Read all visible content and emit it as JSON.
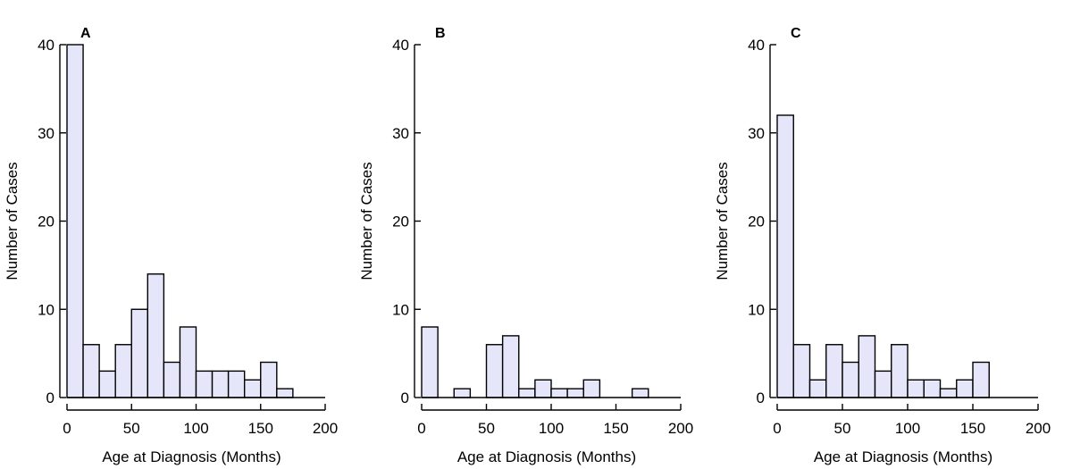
{
  "chart_data": [
    {
      "type": "bar",
      "panel": "A",
      "xlabel": "Age at Diagnosis (Months)",
      "ylabel": "Number of Cases",
      "xlim": [
        0,
        200
      ],
      "ylim": [
        0,
        40
      ],
      "xticks": [
        0,
        50,
        100,
        150,
        200
      ],
      "yticks": [
        0,
        10,
        20,
        30,
        40
      ],
      "bin_width": 12.5,
      "bin_starts": [
        0,
        12.5,
        25,
        37.5,
        50,
        62.5,
        75,
        87.5,
        100,
        112.5,
        125,
        137.5,
        150,
        162.5
      ],
      "values": [
        40,
        6,
        3,
        6,
        10,
        14,
        4,
        8,
        3,
        3,
        3,
        2,
        4,
        1
      ]
    },
    {
      "type": "bar",
      "panel": "B",
      "xlabel": "Age at Diagnosis (Months)",
      "ylabel": "Number of Cases",
      "xlim": [
        0,
        200
      ],
      "ylim": [
        0,
        40
      ],
      "xticks": [
        0,
        50,
        100,
        150,
        200
      ],
      "yticks": [
        0,
        10,
        20,
        30,
        40
      ],
      "bin_width": 12.5,
      "bin_starts": [
        0,
        12.5,
        25,
        37.5,
        50,
        62.5,
        75,
        87.5,
        100,
        112.5,
        125,
        137.5,
        150,
        162.5
      ],
      "values": [
        8,
        0,
        1,
        0,
        6,
        7,
        1,
        2,
        1,
        1,
        2,
        0,
        0,
        1
      ]
    },
    {
      "type": "bar",
      "panel": "C",
      "xlabel": "Age at Diagnosis (Months)",
      "ylabel": "Number of Cases",
      "xlim": [
        0,
        200
      ],
      "ylim": [
        0,
        40
      ],
      "xticks": [
        0,
        50,
        100,
        150,
        200
      ],
      "yticks": [
        0,
        10,
        20,
        30,
        40
      ],
      "bin_width": 12.5,
      "bin_starts": [
        0,
        12.5,
        25,
        37.5,
        50,
        62.5,
        75,
        87.5,
        100,
        112.5,
        125,
        137.5,
        150
      ],
      "values": [
        32,
        6,
        2,
        6,
        4,
        7,
        3,
        6,
        2,
        2,
        1,
        2,
        4
      ]
    }
  ]
}
